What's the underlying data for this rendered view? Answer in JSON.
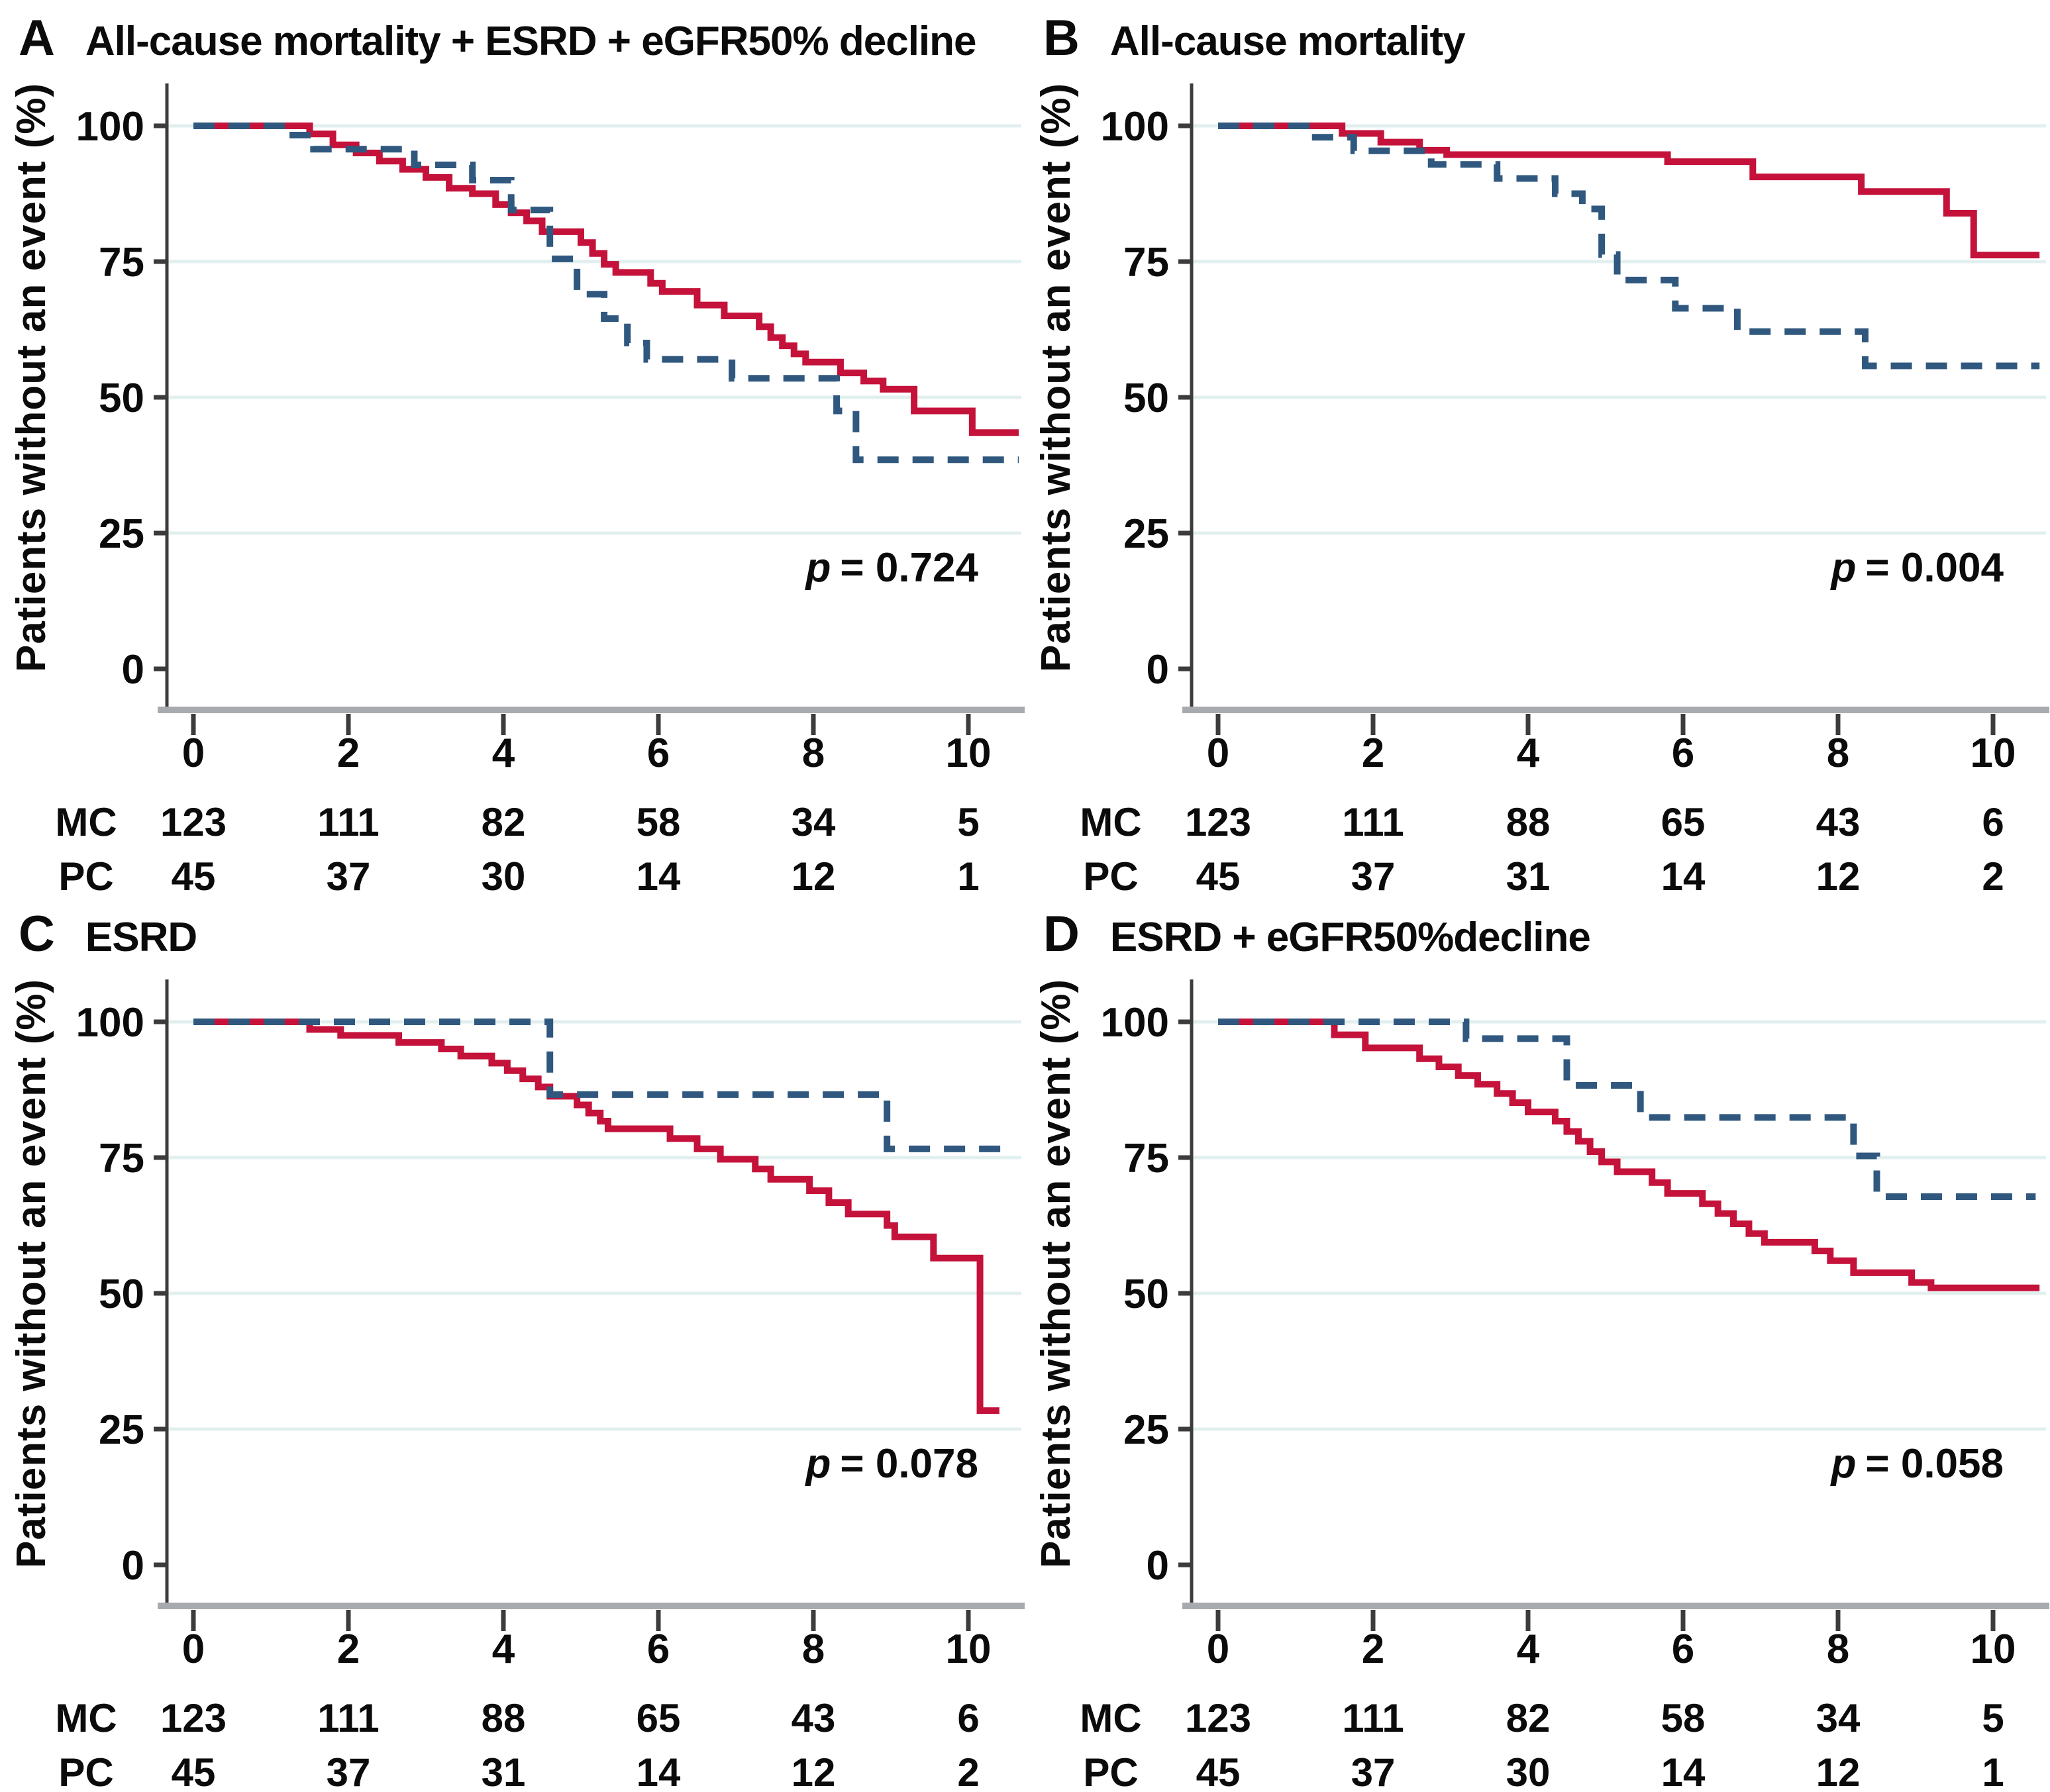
{
  "figure": {
    "y_axis_label": "Patients without an event (%)",
    "y_ticks": [
      100,
      75,
      50,
      25,
      0
    ],
    "x_ticks": [
      0,
      2,
      4,
      6,
      8,
      10
    ],
    "colors": {
      "mc_red": "#c4123a",
      "pc_blue": "#30587f",
      "gridline": "#e2efef",
      "axis_baseline": "#a7abb0",
      "axis_line": "#3c3c3c",
      "text": "#0b0b0b"
    }
  },
  "chart_data": [
    {
      "type": "line",
      "panel_letter": "A",
      "title": "All-cause mortality + ESRD + eGFR50% decline",
      "p_symbol": "p",
      "p_rest": "= 0.724",
      "xlim": [
        0,
        10.75
      ],
      "ylim": [
        0,
        100
      ],
      "x_ticks": [
        0,
        2,
        4,
        6,
        8,
        10
      ],
      "grid_values": [
        100,
        75,
        50,
        25
      ],
      "series": [
        {
          "name": "MC",
          "style": "solid",
          "color": "#c4123a",
          "steps": [
            [
              0,
              100
            ],
            [
              1.5,
              98.5
            ],
            [
              1.8,
              96.5
            ],
            [
              2.1,
              95
            ],
            [
              2.4,
              93.5
            ],
            [
              2.7,
              92
            ],
            [
              3.0,
              90.5
            ],
            [
              3.3,
              88.5
            ],
            [
              3.6,
              87.5
            ],
            [
              3.9,
              85.5
            ],
            [
              4.1,
              84
            ],
            [
              4.3,
              82.5
            ],
            [
              4.5,
              80.5
            ],
            [
              5.0,
              78.5
            ],
            [
              5.15,
              76.5
            ],
            [
              5.3,
              74.5
            ],
            [
              5.45,
              73
            ],
            [
              5.9,
              71
            ],
            [
              6.05,
              69.5
            ],
            [
              6.5,
              67
            ],
            [
              6.85,
              65
            ],
            [
              7.3,
              63
            ],
            [
              7.45,
              61
            ],
            [
              7.6,
              59.5
            ],
            [
              7.75,
              58
            ],
            [
              7.9,
              56.5
            ],
            [
              8.35,
              54.5
            ],
            [
              8.65,
              53
            ],
            [
              8.9,
              51.5
            ],
            [
              9.3,
              47.5
            ],
            [
              10.05,
              43.5
            ],
            [
              10.65,
              43.5
            ]
          ]
        },
        {
          "name": "PC",
          "style": "dashed",
          "color": "#30587f",
          "steps": [
            [
              0,
              100
            ],
            [
              1.2,
              98.3
            ],
            [
              1.55,
              95.7
            ],
            [
              2.85,
              92.8
            ],
            [
              3.6,
              90
            ],
            [
              4.1,
              84.5
            ],
            [
              4.6,
              75.5
            ],
            [
              4.95,
              69
            ],
            [
              5.3,
              64.5
            ],
            [
              5.6,
              60
            ],
            [
              5.85,
              57
            ],
            [
              6.95,
              53.5
            ],
            [
              8.3,
              47.5
            ],
            [
              8.55,
              38.5
            ],
            [
              10.65,
              38.5
            ]
          ]
        }
      ],
      "risk_table": {
        "rows": [
          {
            "label": "MC",
            "values": [
              "123",
              "111",
              "82",
              "58",
              "34",
              "5"
            ]
          },
          {
            "label": "PC",
            "values": [
              "45",
              "37",
              "30",
              "14",
              "12",
              "1"
            ]
          }
        ]
      }
    },
    {
      "type": "line",
      "panel_letter": "B",
      "title": "All-cause mortality",
      "p_symbol": "p",
      "p_rest": "= 0.004",
      "xlim": [
        0,
        10.75
      ],
      "ylim": [
        0,
        100
      ],
      "x_ticks": [
        0,
        2,
        4,
        6,
        8,
        10
      ],
      "grid_values": [
        100,
        75,
        50,
        25
      ],
      "series": [
        {
          "name": "MC",
          "style": "solid",
          "color": "#c4123a",
          "steps": [
            [
              0,
              100
            ],
            [
              1.6,
              98.6
            ],
            [
              2.1,
              97
            ],
            [
              2.6,
              95.5
            ],
            [
              2.95,
              94.7
            ],
            [
              5.8,
              93.4
            ],
            [
              6.9,
              90.6
            ],
            [
              8.3,
              87.9
            ],
            [
              9.4,
              83.9
            ],
            [
              9.75,
              76.2
            ],
            [
              10.6,
              76.2
            ]
          ]
        },
        {
          "name": "PC",
          "style": "dashed",
          "color": "#30587f",
          "steps": [
            [
              0,
              100
            ],
            [
              1.2,
              97.9
            ],
            [
              1.75,
              95.4
            ],
            [
              2.75,
              92.9
            ],
            [
              3.6,
              90.3
            ],
            [
              4.35,
              87.5
            ],
            [
              4.7,
              84.7
            ],
            [
              4.95,
              76.3
            ],
            [
              5.15,
              71.6
            ],
            [
              5.9,
              66.4
            ],
            [
              6.7,
              62.1
            ],
            [
              8.35,
              55.8
            ],
            [
              10.6,
              55.8
            ]
          ]
        }
      ],
      "risk_table": {
        "rows": [
          {
            "label": "MC",
            "values": [
              "123",
              "111",
              "88",
              "65",
              "43",
              "6"
            ]
          },
          {
            "label": "PC",
            "values": [
              "45",
              "37",
              "31",
              "14",
              "12",
              "2"
            ]
          }
        ]
      }
    },
    {
      "type": "line",
      "panel_letter": "C",
      "title": "ESRD",
      "p_symbol": "p",
      "p_rest": "= 0.078",
      "xlim": [
        0,
        10.75
      ],
      "ylim": [
        0,
        100
      ],
      "x_ticks": [
        0,
        2,
        4,
        6,
        8,
        10
      ],
      "grid_values": [
        100,
        75,
        50,
        25
      ],
      "series": [
        {
          "name": "MC",
          "style": "solid",
          "color": "#c4123a",
          "steps": [
            [
              0,
              100
            ],
            [
              1.5,
              98.6
            ],
            [
              1.9,
              97.5
            ],
            [
              2.65,
              96.2
            ],
            [
              3.2,
              95
            ],
            [
              3.45,
              93.7
            ],
            [
              3.85,
              92.4
            ],
            [
              4.05,
              91
            ],
            [
              4.25,
              89.5
            ],
            [
              4.45,
              88
            ],
            [
              4.6,
              86.3
            ],
            [
              4.95,
              84.7
            ],
            [
              5.1,
              83.2
            ],
            [
              5.25,
              81.7
            ],
            [
              5.35,
              80.3
            ],
            [
              6.15,
              78.5
            ],
            [
              6.5,
              76.6
            ],
            [
              6.8,
              74.7
            ],
            [
              7.25,
              72.9
            ],
            [
              7.45,
              71
            ],
            [
              7.95,
              68.9
            ],
            [
              8.2,
              66.7
            ],
            [
              8.45,
              64.6
            ],
            [
              8.95,
              62.5
            ],
            [
              9.05,
              60.4
            ],
            [
              9.55,
              56.5
            ],
            [
              10.15,
              28.4
            ],
            [
              10.4,
              28.4
            ]
          ]
        },
        {
          "name": "PC",
          "style": "dashed",
          "color": "#30587f",
          "steps": [
            [
              0,
              100
            ],
            [
              4.6,
              86.6
            ],
            [
              8.95,
              76.6
            ],
            [
              10.45,
              76.6
            ]
          ]
        }
      ],
      "risk_table": {
        "rows": [
          {
            "label": "MC",
            "values": [
              "123",
              "111",
              "88",
              "65",
              "43",
              "6"
            ]
          },
          {
            "label": "PC",
            "values": [
              "45",
              "37",
              "31",
              "14",
              "12",
              "2"
            ]
          }
        ]
      }
    },
    {
      "type": "line",
      "panel_letter": "D",
      "title": "ESRD + eGFR50%decline",
      "p_symbol": "p",
      "p_rest": "= 0.058",
      "xlim": [
        0,
        10.75
      ],
      "ylim": [
        0,
        100
      ],
      "x_ticks": [
        0,
        2,
        4,
        6,
        8,
        10
      ],
      "grid_values": [
        100,
        75,
        50,
        25
      ],
      "series": [
        {
          "name": "MC",
          "style": "solid",
          "color": "#c4123a",
          "steps": [
            [
              0,
              100
            ],
            [
              1.5,
              97.6
            ],
            [
              1.9,
              95.2
            ],
            [
              2.6,
              93.2
            ],
            [
              2.85,
              91.7
            ],
            [
              3.1,
              90.1
            ],
            [
              3.35,
              88.5
            ],
            [
              3.6,
              86.8
            ],
            [
              3.8,
              85.1
            ],
            [
              4.0,
              83.4
            ],
            [
              4.35,
              81.7
            ],
            [
              4.5,
              79.8
            ],
            [
              4.65,
              78
            ],
            [
              4.8,
              76.1
            ],
            [
              4.95,
              74.2
            ],
            [
              5.15,
              72.4
            ],
            [
              5.6,
              70.4
            ],
            [
              5.8,
              68.4
            ],
            [
              6.25,
              66.5
            ],
            [
              6.45,
              64.7
            ],
            [
              6.65,
              62.8
            ],
            [
              6.85,
              61
            ],
            [
              7.05,
              59.4
            ],
            [
              7.7,
              57.8
            ],
            [
              7.9,
              56
            ],
            [
              8.2,
              53.8
            ],
            [
              8.95,
              52
            ],
            [
              9.2,
              51
            ],
            [
              10.6,
              51
            ]
          ]
        },
        {
          "name": "PC",
          "style": "dashed",
          "color": "#30587f",
          "steps": [
            [
              0,
              100
            ],
            [
              3.2,
              96.9
            ],
            [
              4.5,
              88.3
            ],
            [
              5.45,
              82.4
            ],
            [
              8.2,
              75.3
            ],
            [
              8.5,
              67.8
            ],
            [
              10.55,
              67.8
            ]
          ]
        }
      ],
      "risk_table": {
        "rows": [
          {
            "label": "MC",
            "values": [
              "123",
              "111",
              "82",
              "58",
              "34",
              "5"
            ]
          },
          {
            "label": "PC",
            "values": [
              "45",
              "37",
              "30",
              "14",
              "12",
              "1"
            ]
          }
        ]
      }
    }
  ]
}
